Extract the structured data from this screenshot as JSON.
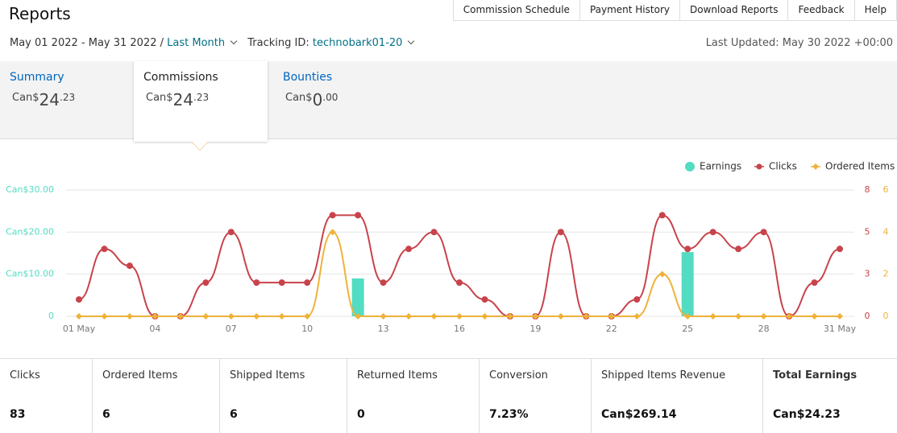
{
  "header": {
    "title": "Reports",
    "nav": [
      "Commission Schedule",
      "Payment History",
      "Download Reports",
      "Feedback",
      "Help"
    ],
    "date_range": "May 01 2022 - May 31 2022 /",
    "period": "Last Month",
    "tracking_label": "Tracking ID:",
    "tracking_id": "technobark01-20",
    "last_updated": "Last Updated: May 30 2022 +00:00"
  },
  "tabs": [
    {
      "label": "Summary",
      "currency": "Can$",
      "whole": "24",
      "fraction": ".23"
    },
    {
      "label": "Commissions",
      "currency": "Can$",
      "whole": "24",
      "fraction": ".23"
    },
    {
      "label": "Bounties",
      "currency": "Can$",
      "whole": "0",
      "fraction": ".00"
    }
  ],
  "chart_data": {
    "type": "combo",
    "legend": "top-right",
    "grid": true,
    "categories": [
      "01 May",
      null,
      null,
      "04",
      null,
      null,
      "07",
      null,
      null,
      "10",
      null,
      null,
      "13",
      null,
      null,
      "16",
      null,
      null,
      "19",
      null,
      null,
      "22",
      null,
      null,
      "25",
      null,
      null,
      "28",
      null,
      null,
      "31 May"
    ],
    "series": [
      {
        "name": "Earnings",
        "type": "bar",
        "color": "#52dcc2",
        "axis": "y",
        "values": [
          0,
          0,
          0,
          0,
          0,
          0,
          0,
          0,
          0,
          0,
          0,
          8.98,
          0,
          0,
          0,
          0,
          0,
          0,
          0,
          0,
          0,
          0,
          0,
          0,
          15.25,
          0,
          0,
          0,
          0,
          0,
          0
        ]
      },
      {
        "name": "Clicks",
        "type": "line",
        "color": "#c8434b",
        "axis": "y2",
        "values": [
          1,
          4,
          3,
          0,
          0,
          2,
          5,
          2,
          2,
          2,
          6,
          6,
          2,
          4,
          5,
          2,
          1,
          0,
          0,
          5,
          0,
          0,
          1,
          6,
          4,
          5,
          4,
          5,
          0,
          2,
          4
        ]
      },
      {
        "name": "Ordered Items",
        "type": "line",
        "color": "#efb23a",
        "axis": "y3",
        "values": [
          0,
          0,
          0,
          0,
          0,
          0,
          0,
          0,
          0,
          0,
          4,
          0,
          0,
          0,
          0,
          0,
          0,
          0,
          0,
          0,
          0,
          0,
          0,
          2,
          0,
          0,
          0,
          0,
          0,
          0,
          0
        ]
      }
    ],
    "ylim": [
      0,
      30
    ],
    "yticks": [
      0,
      {
        "value": 10,
        "label": "Can$10.00"
      },
      {
        "value": 20,
        "label": "Can$20.00"
      },
      {
        "value": 30,
        "label": "Can$30.00"
      }
    ],
    "y2lim": [
      0,
      7.5
    ],
    "y2ticks": [
      0,
      {
        "value": 2.5,
        "label": "3"
      },
      5,
      {
        "value": 7.5,
        "label": "8"
      }
    ],
    "y3lim": [
      0,
      6
    ],
    "y3ticks": [
      0,
      2,
      4,
      6
    ]
  },
  "stats": [
    {
      "label": "Clicks",
      "value": 83
    },
    {
      "label": "Ordered Items",
      "value": 6
    },
    {
      "label": "Shipped Items",
      "value": 6
    },
    {
      "label": "Returned Items",
      "value": 0
    },
    {
      "label": "Conversion",
      "value": "7.23%"
    },
    {
      "label": "Shipped Items Revenue",
      "value": "Can$269.14"
    },
    {
      "label": "Total Earnings",
      "value": "Can$24.23"
    }
  ]
}
